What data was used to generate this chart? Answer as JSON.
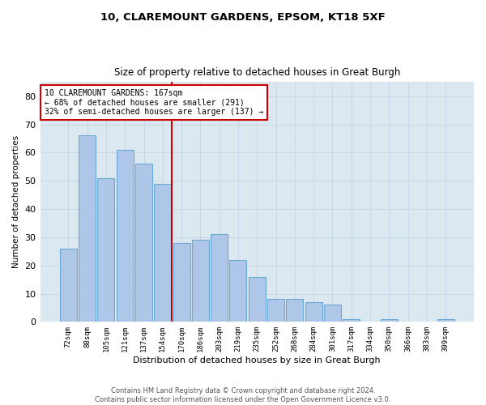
{
  "title1": "10, CLAREMOUNT GARDENS, EPSOM, KT18 5XF",
  "title2": "Size of property relative to detached houses in Great Burgh",
  "xlabel": "Distribution of detached houses by size in Great Burgh",
  "ylabel": "Number of detached properties",
  "categories": [
    "72sqm",
    "88sqm",
    "105sqm",
    "121sqm",
    "137sqm",
    "154sqm",
    "170sqm",
    "186sqm",
    "203sqm",
    "219sqm",
    "235sqm",
    "252sqm",
    "268sqm",
    "284sqm",
    "301sqm",
    "317sqm",
    "334sqm",
    "350sqm",
    "366sqm",
    "383sqm",
    "399sqm"
  ],
  "values": [
    26,
    66,
    51,
    61,
    56,
    49,
    28,
    29,
    31,
    22,
    16,
    8,
    8,
    7,
    6,
    1,
    0,
    1,
    0,
    0,
    1
  ],
  "bar_color": "#aec6e8",
  "bar_edge_color": "#6aaad4",
  "vline_color": "#cc0000",
  "annotation_text": "10 CLAREMOUNT GARDENS: 167sqm\n← 68% of detached houses are smaller (291)\n32% of semi-detached houses are larger (137) →",
  "annotation_box_color": "#ffffff",
  "annotation_box_edge_color": "#cc0000",
  "ylim": [
    0,
    85
  ],
  "yticks": [
    0,
    10,
    20,
    30,
    40,
    50,
    60,
    70,
    80
  ],
  "grid_color": "#c8d8e8",
  "background_color": "#dce8f0",
  "footer1": "Contains HM Land Registry data © Crown copyright and database right 2024.",
  "footer2": "Contains public sector information licensed under the Open Government Licence v3.0."
}
